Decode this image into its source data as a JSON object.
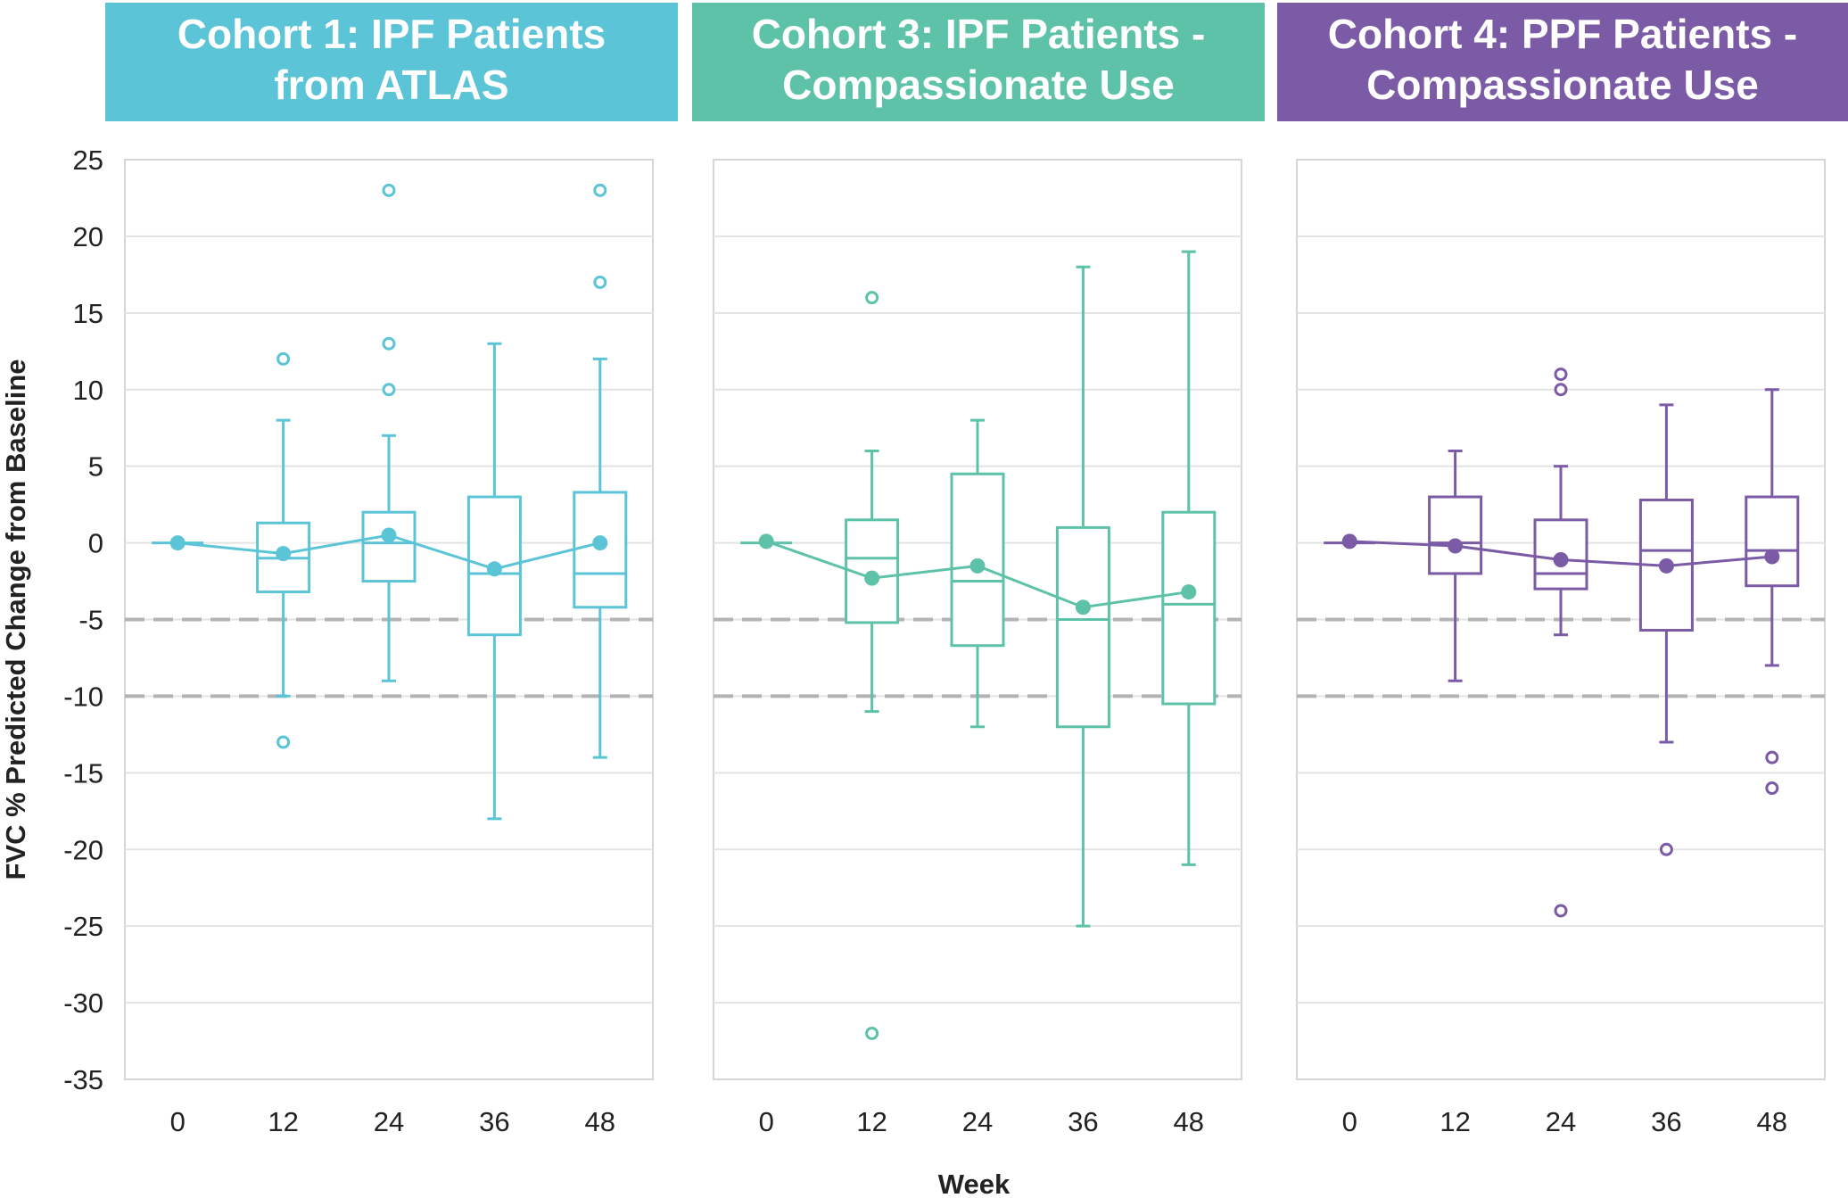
{
  "chart_data": {
    "type": "box",
    "ylabel": "FVC % Predicted Change from Baseline",
    "xlabel": "Week",
    "ylim": [
      -35,
      25
    ],
    "yticks": [
      25,
      20,
      15,
      10,
      5,
      0,
      -5,
      -10,
      -15,
      -20,
      -25,
      -30,
      -35
    ],
    "categories": [
      "0",
      "12",
      "24",
      "36",
      "48"
    ],
    "reference_lines": [
      -5,
      -10
    ],
    "grid": true,
    "colors": {
      "reference_line": "#b3b3b3",
      "grid": "#e3e3e3",
      "axis_text": "#222222",
      "header_text": "#ffffff"
    },
    "panels": [
      {
        "title": "Cohort 1: IPF Patients from ATLAS",
        "title_lines": [
          "Cohort 1: IPF Patients",
          "from ATLAS"
        ],
        "color": "#5bc4d6",
        "boxes": [
          {
            "week": "0",
            "whisker_low": 0,
            "q1": 0,
            "median": 0,
            "q3": 0,
            "whisker_high": 0,
            "mean": 0,
            "outliers": []
          },
          {
            "week": "12",
            "whisker_low": -10,
            "q1": -3.2,
            "median": -1,
            "q3": 1.3,
            "whisker_high": 8,
            "mean": -0.7,
            "outliers": [
              12,
              -13
            ]
          },
          {
            "week": "24",
            "whisker_low": -9,
            "q1": -2.5,
            "median": 0,
            "q3": 2,
            "whisker_high": 7,
            "mean": 0.5,
            "outliers": [
              23,
              13,
              10
            ]
          },
          {
            "week": "36",
            "whisker_low": -18,
            "q1": -6,
            "median": -2,
            "q3": 3,
            "whisker_high": 13,
            "mean": -1.7,
            "outliers": []
          },
          {
            "week": "48",
            "whisker_low": -14,
            "q1": -4.2,
            "median": -2,
            "q3": 3.3,
            "whisker_high": 12,
            "mean": 0,
            "outliers": [
              23,
              17
            ]
          }
        ]
      },
      {
        "title": "Cohort 3: IPF Patients - Compassionate Use",
        "title_lines": [
          "Cohort 3: IPF Patients -",
          "Compassionate Use"
        ],
        "color": "#5dc2a8",
        "boxes": [
          {
            "week": "0",
            "whisker_low": 0,
            "q1": 0,
            "median": 0,
            "q3": 0,
            "whisker_high": 0,
            "mean": 0.1,
            "outliers": []
          },
          {
            "week": "12",
            "whisker_low": -11,
            "q1": -5.2,
            "median": -1,
            "q3": 1.5,
            "whisker_high": 6,
            "mean": -2.3,
            "outliers": [
              16,
              -32
            ]
          },
          {
            "week": "24",
            "whisker_low": -12,
            "q1": -6.7,
            "median": -2.5,
            "q3": 4.5,
            "whisker_high": 8,
            "mean": -1.5,
            "outliers": []
          },
          {
            "week": "36",
            "whisker_low": -25,
            "q1": -12,
            "median": -5,
            "q3": 1,
            "whisker_high": 18,
            "mean": -4.2,
            "outliers": []
          },
          {
            "week": "48",
            "whisker_low": -21,
            "q1": -10.5,
            "median": -4,
            "q3": 2,
            "whisker_high": 19,
            "mean": -3.2,
            "outliers": []
          }
        ]
      },
      {
        "title": "Cohort 4: PPF Patients - Compassionate Use",
        "title_lines": [
          "Cohort 4: PPF Patients -",
          "Compassionate Use"
        ],
        "color": "#7b5aa6",
        "boxes": [
          {
            "week": "0",
            "whisker_low": 0,
            "q1": 0,
            "median": 0,
            "q3": 0,
            "whisker_high": 0,
            "mean": 0.1,
            "outliers": []
          },
          {
            "week": "12",
            "whisker_low": -9,
            "q1": -2,
            "median": 0,
            "q3": 3,
            "whisker_high": 6,
            "mean": -0.2,
            "outliers": []
          },
          {
            "week": "24",
            "whisker_low": -6,
            "q1": -3,
            "median": -2,
            "q3": 1.5,
            "whisker_high": 5,
            "mean": -1.1,
            "outliers": [
              11,
              10,
              -24
            ]
          },
          {
            "week": "36",
            "whisker_low": -13,
            "q1": -5.7,
            "median": -0.5,
            "q3": 2.8,
            "whisker_high": 9,
            "mean": -1.5,
            "outliers": [
              -20
            ]
          },
          {
            "week": "48",
            "whisker_low": -8,
            "q1": -2.8,
            "median": -0.5,
            "q3": 3,
            "whisker_high": 10,
            "mean": -0.9,
            "outliers": [
              -14,
              -16
            ]
          }
        ]
      }
    ]
  }
}
